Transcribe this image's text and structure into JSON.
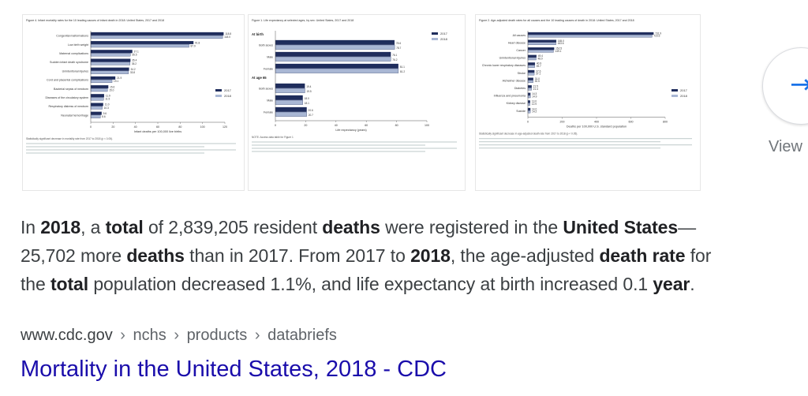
{
  "thumbnails": [
    {
      "title": "Figure 4. Infant mortality rates for the 10 leading causes of infant death in 2018: United States, 2017 and 2018",
      "legend": [
        "2017",
        "2018"
      ],
      "xlabel": "Infant deaths per 100,000 live births",
      "footnote": "Statistically significant decrease in mortality rate from 2017 to 2018 (p < 0.05).",
      "chart_data": {
        "type": "bar",
        "categories": [
          "Congenital malformations",
          "Low birth weight",
          "Maternal complications",
          "Sudden infant death syndrome",
          "Unintentional injuries",
          "Cord and placental complications",
          "Bacterial sepsis of newborn",
          "Diseases of the circulatory system",
          "Respiratory distress of newborn",
          "Neonatal hemorrhage"
        ],
        "series": [
          {
            "name": "2017",
            "values": [
              118.8,
              91.8,
              37.1,
              35.4,
              34.2,
              21.9,
              15.6,
              11.9,
              11.0,
              9.6
            ]
          },
          {
            "name": "2018",
            "values": [
              118.0,
              87.9,
              35.5,
              35.2,
              33.8,
              19.1,
              15.0,
              11.5,
              10.3,
              8.6
            ]
          }
        ],
        "xlim": [
          0,
          120
        ],
        "ticks": [
          "0",
          "20",
          "40",
          "60",
          "80",
          "100",
          "120"
        ]
      }
    },
    {
      "title": "Figure 1. Life expectancy at selected ages, by sex: United States, 2017 and 2018",
      "legend": [
        "2017",
        "2018"
      ],
      "xlabel": "Life expectancy (years)",
      "footnote": "NOTE: Access data table for Figure 1",
      "chart_data": {
        "type": "bar",
        "groups": [
          "At birth",
          "At age 65"
        ],
        "categories": [
          "Both sexes",
          "Male",
          "Female",
          "Both sexes",
          "Male",
          "Female"
        ],
        "series": [
          {
            "name": "2017",
            "values": [
              78.6,
              76.1,
              81.1,
              19.4,
              18.0,
              20.6
            ]
          },
          {
            "name": "2018",
            "values": [
              78.7,
              76.2,
              81.2,
              19.5,
              18.1,
              20.7
            ]
          }
        ],
        "xlim": [
          0,
          100
        ],
        "ticks": [
          "0",
          "20",
          "40",
          "60",
          "80",
          "100"
        ]
      }
    },
    {
      "title": "Figure 2. Age-adjusted death rates for all causes and the 10 leading causes of death in 2018: United States, 2017 and 2018",
      "legend": [
        "2017",
        "2018"
      ],
      "xlabel": "Deaths per 100,000 U.S. standard population",
      "footnote": "Statistically significant decrease in age-adjusted death rate from 2017 to 2018 (p < 0.05).",
      "chart_data": {
        "type": "bar",
        "categories": [
          "All causes",
          "Heart disease",
          "Cancer",
          "Unintentional injuries",
          "Chronic lower respiratory diseases",
          "Stroke",
          "Alzheimer disease",
          "Diabetes",
          "Influenza and pneumonia",
          "Kidney disease",
          "Suicide"
        ],
        "series": [
          {
            "name": "2017",
            "values": [
              731.9,
              165.0,
              152.5,
              49.4,
              40.9,
              37.6,
              31.0,
              21.5,
              14.3,
              13.0,
              14.0
            ]
          },
          {
            "name": "2018",
            "values": [
              723.6,
              163.6,
              149.1,
              48.0,
              39.7,
              37.1,
              30.5,
              21.4,
              14.9,
              12.9,
              14.2
            ]
          }
        ],
        "xlim": [
          0,
          800
        ],
        "ticks": [
          "0",
          "200",
          "400",
          "600",
          "800"
        ]
      }
    }
  ],
  "colors": {
    "y2017": "#1f2d5c",
    "y2018": "#a9b7d4",
    "link": "#1a0dab",
    "accent": "#1a73e8"
  },
  "view": {
    "icon": "arrow-right-icon",
    "label": "View"
  },
  "snippet": {
    "p1": "In ",
    "b1": "2018",
    "p2": ", a ",
    "b2": "total",
    "p3": " of 2,839,205 resident ",
    "b3": "deaths",
    "p4": " were registered in the ",
    "b4": "United States",
    "p5": "—",
    "p6": "25,702 more ",
    "b5": "deaths",
    "p7": " than in 2017. From 2017 to ",
    "b6": "2018",
    "p8": ", the age-adjusted ",
    "b7": "death rate",
    "p9": " for",
    "p10": "the ",
    "b8": "total",
    "p11": " population decreased 1.1%, and life expectancy at birth increased 0.1 ",
    "b9": "year",
    "p12": "."
  },
  "breadcrumb": {
    "domain": "www.cdc.gov",
    "parts": [
      "nchs",
      "products",
      "databriefs"
    ],
    "separator": "›"
  },
  "result": {
    "title": "Mortality in the United States, 2018 - CDC"
  }
}
